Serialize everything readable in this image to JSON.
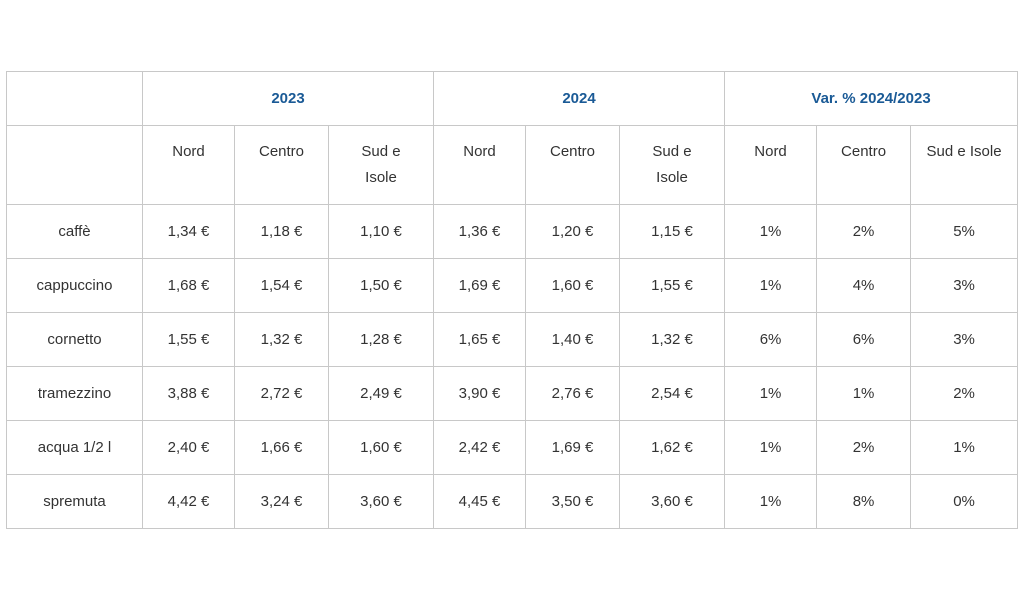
{
  "table": {
    "groups": [
      "2023",
      "2024",
      "Var. % 2024/2023"
    ],
    "subheaders": [
      "Nord",
      "Centro",
      "Sud e Isole",
      "Nord",
      "Centro",
      "Sud e Isole",
      "Nord",
      "Centro",
      "Sud e Isole"
    ],
    "rows": [
      {
        "label": "caffè",
        "values": [
          "1,34 €",
          "1,18 €",
          "1,10 €",
          "1,36 €",
          "1,20 €",
          "1,15 €",
          "1%",
          "2%",
          "5%"
        ]
      },
      {
        "label": "cappuccino",
        "values": [
          "1,68 €",
          "1,54 €",
          "1,50 €",
          "1,69 €",
          "1,60 €",
          "1,55 €",
          "1%",
          "4%",
          "3%"
        ]
      },
      {
        "label": "cornetto",
        "values": [
          "1,55 €",
          "1,32 €",
          "1,28 €",
          "1,65 €",
          "1,40 €",
          "1,32 €",
          "6%",
          "6%",
          "3%"
        ]
      },
      {
        "label": "tramezzino",
        "values": [
          "3,88 €",
          "2,72 €",
          "2,49 €",
          "3,90 €",
          "2,76 €",
          "2,54 €",
          "1%",
          "1%",
          "2%"
        ]
      },
      {
        "label": "acqua 1/2 l",
        "values": [
          "2,40 €",
          "1,66 €",
          "1,60 €",
          "2,42 €",
          "1,69 €",
          "1,62 €",
          "1%",
          "2%",
          "1%"
        ]
      },
      {
        "label": "spremuta",
        "values": [
          "4,42 €",
          "3,24 €",
          "3,60 €",
          "4,45 €",
          "3,50 €",
          "3,60 €",
          "1%",
          "8%",
          "0%"
        ]
      }
    ]
  }
}
